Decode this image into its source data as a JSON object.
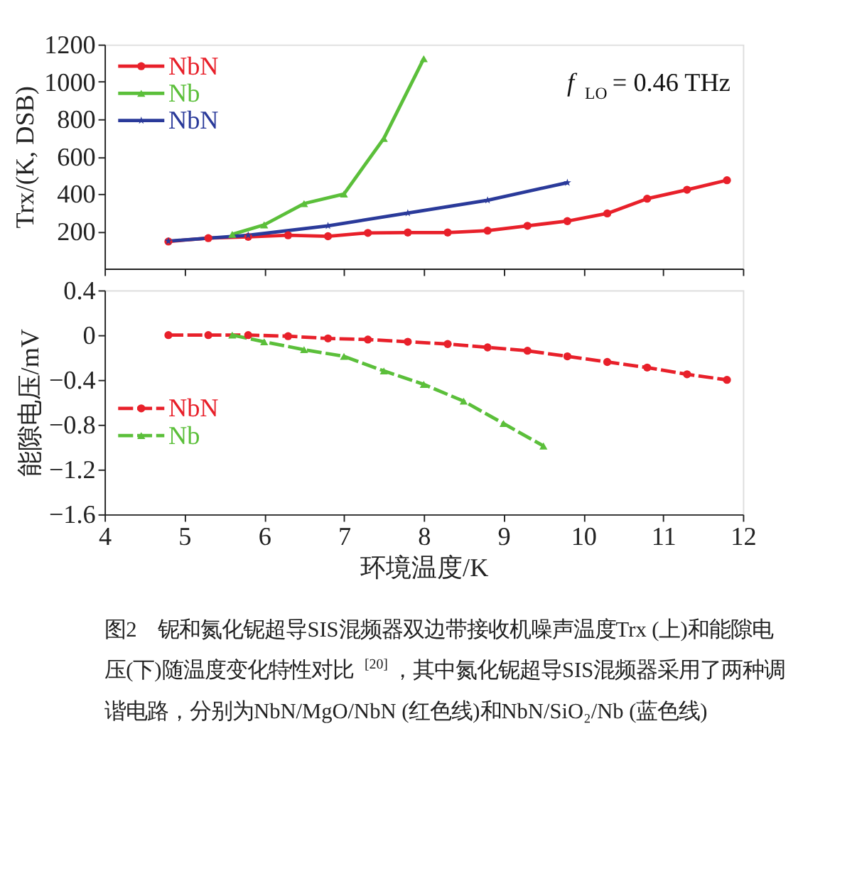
{
  "chart_data": [
    {
      "type": "line",
      "ylabel": "Trx/(K, DSB)",
      "xlim": [
        4,
        12
      ],
      "xticks": [
        4,
        5,
        6,
        7,
        8,
        9,
        10,
        11,
        12
      ],
      "ylim": [
        0,
        1200
      ],
      "yticks": [
        200,
        400,
        600,
        800,
        1000,
        1200
      ],
      "tick_labels": "y",
      "legend": "top left",
      "line_style": "solid",
      "annotations": [
        "f$_{LO}$= 0.46 THz"
      ],
      "series": [
        {
          "name": "NbN",
          "color": "#e8202a",
          "marker": "circle",
          "x": [
            4.8,
            5.3,
            5.8,
            6.3,
            6.8,
            7.3,
            7.8,
            8.3,
            8.8,
            9.3,
            9.8,
            10.3,
            10.8,
            11.3,
            11.8
          ],
          "values": [
            145,
            163,
            170,
            178,
            173,
            191,
            193,
            193,
            203,
            229,
            254,
            295,
            374,
            422,
            473
          ]
        },
        {
          "name": "Nb",
          "color": "#5bbf3a",
          "marker": "triangle",
          "x": [
            5.6,
            6.0,
            6.5,
            7.0,
            7.5,
            8.0
          ],
          "values": [
            183,
            234,
            348,
            399,
            697,
            1124
          ]
        },
        {
          "name": "NbN",
          "color": "#2a3a9a",
          "marker": "star",
          "x": [
            4.8,
            5.8,
            6.8,
            7.8,
            8.8,
            9.8
          ],
          "values": [
            147,
            178,
            229,
            297,
            366,
            460
          ]
        }
      ]
    },
    {
      "type": "line",
      "xlabel": "环境温度/K",
      "ylabel": "能隙电压/mV",
      "xlim": [
        4,
        12
      ],
      "xticks": [
        4,
        5,
        6,
        7,
        8,
        9,
        10,
        11,
        12
      ],
      "ylim": [
        -1.6,
        0.4
      ],
      "yticks": [
        -1.6,
        -1.2,
        -0.8,
        -0.4,
        0,
        0.4
      ],
      "legend": "bottom left",
      "line_style": "dashed",
      "annotations": [
        "图2　铌和氮化铌超导SIS混频器双边带接收机噪声温度Trx (上)和能隙电压(下)随温度变化特性对比$^{[20]}$，其中氮化铌超导SIS混频器采用了两种调谐电路，分别为NbN/MgO/NbN (红色线)和NbN/SiO₂/Nb (蓝色线)"
      ],
      "series": [
        {
          "name": "NbN",
          "color": "#e8202a",
          "marker": "circle",
          "x": [
            4.8,
            5.3,
            5.8,
            6.3,
            6.8,
            7.3,
            7.8,
            8.3,
            8.8,
            9.3,
            9.8,
            10.3,
            10.8,
            11.3,
            11.8
          ],
          "values": [
            0,
            0,
            0,
            -0.01,
            -0.03,
            -0.04,
            -0.06,
            -0.08,
            -0.11,
            -0.14,
            -0.19,
            -0.24,
            -0.29,
            -0.35,
            -0.4
          ]
        },
        {
          "name": "Nb",
          "color": "#5bbf3a",
          "marker": "triangle",
          "x": [
            5.6,
            6.0,
            6.5,
            7.0,
            7.5,
            8.0,
            8.5,
            9.0,
            9.5
          ],
          "values": [
            0,
            -0.06,
            -0.13,
            -0.19,
            -0.32,
            -0.44,
            -0.59,
            -0.79,
            -0.99
          ]
        }
      ]
    }
  ]
}
